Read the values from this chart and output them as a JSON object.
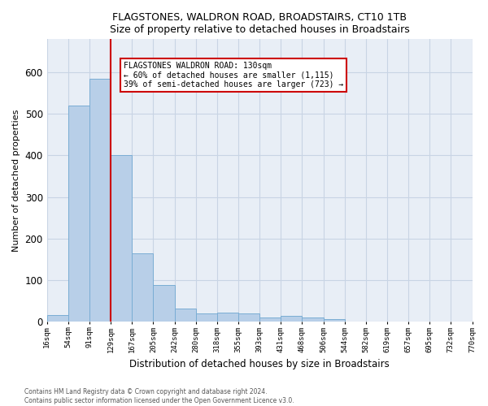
{
  "title": "FLAGSTONES, WALDRON ROAD, BROADSTAIRS, CT10 1TB",
  "subtitle": "Size of property relative to detached houses in Broadstairs",
  "xlabel": "Distribution of detached houses by size in Broadstairs",
  "ylabel": "Number of detached properties",
  "bar_values": [
    15,
    520,
    585,
    400,
    165,
    88,
    32,
    20,
    22,
    20,
    10,
    13,
    10,
    5,
    0,
    0,
    0,
    0,
    0,
    0
  ],
  "tick_labels": [
    "16sqm",
    "54sqm",
    "91sqm",
    "129sqm",
    "167sqm",
    "205sqm",
    "242sqm",
    "280sqm",
    "318sqm",
    "355sqm",
    "393sqm",
    "431sqm",
    "468sqm",
    "506sqm",
    "544sqm",
    "582sqm",
    "619sqm",
    "657sqm",
    "695sqm",
    "732sqm",
    "770sqm"
  ],
  "bar_color": "#b8cfe8",
  "bar_edge_color": "#7aadd4",
  "bar_edge_width": 0.7,
  "grid_color": "#c8d4e4",
  "background_color": "#e8eef6",
  "property_line_color": "#cc0000",
  "property_line_bar_index": 3,
  "annotation_text": "FLAGSTONES WALDRON ROAD: 130sqm\n← 60% of detached houses are smaller (1,115)\n39% of semi-detached houses are larger (723) →",
  "annotation_box_facecolor": "#ffffff",
  "annotation_box_edgecolor": "#cc0000",
  "footer_line1": "Contains HM Land Registry data © Crown copyright and database right 2024.",
  "footer_line2": "Contains public sector information licensed under the Open Government Licence v3.0.",
  "ylim": [
    0,
    680
  ],
  "yticks": [
    0,
    100,
    200,
    300,
    400,
    500,
    600
  ],
  "n_bars": 20
}
